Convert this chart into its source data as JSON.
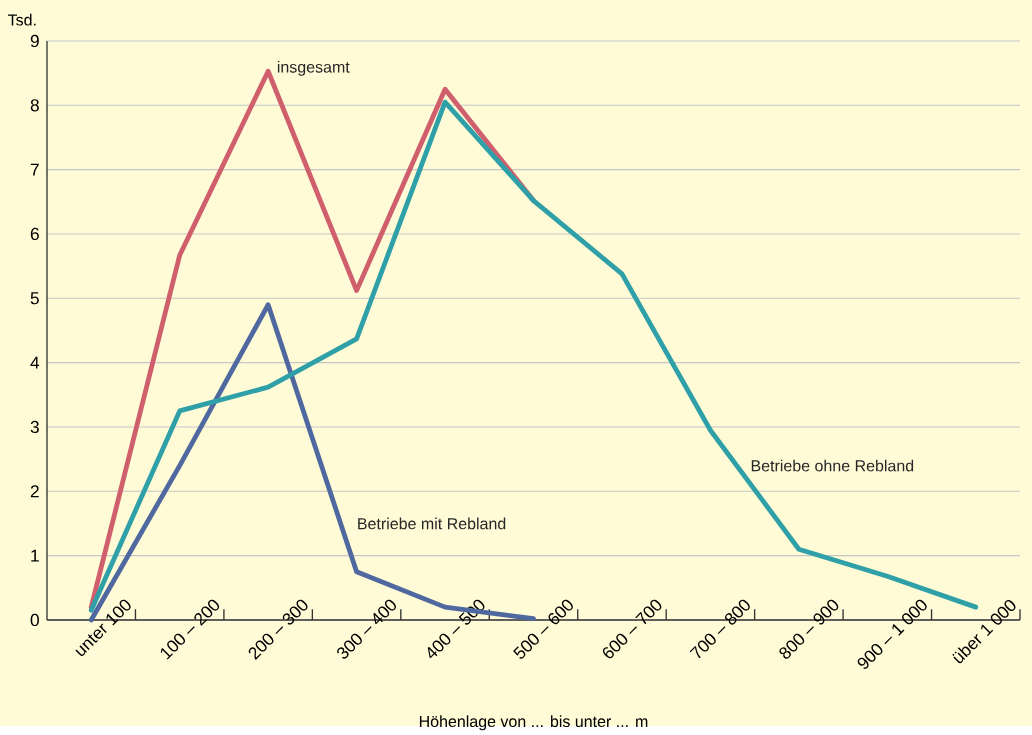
{
  "chart_data": {
    "type": "line",
    "ylabel": "Tsd.",
    "xlabel": "Höhenlage von ... bis unter ... m",
    "categories": [
      "unter 100",
      "100 – 200",
      "200 – 300",
      "300 – 400",
      "400 – 500",
      "500 – 600",
      "600 – 700",
      "700 – 800",
      "800 – 900",
      "900 – 1 000",
      "über 1 000"
    ],
    "series": [
      {
        "name": "insgesamt",
        "color": "#cf5f6c",
        "values": [
          0.2,
          5.67,
          8.53,
          5.12,
          8.25,
          6.52,
          null,
          null,
          null,
          null,
          null
        ]
      },
      {
        "name": "Betriebe mit Rebland",
        "color": "#4f68a0",
        "values": [
          0.0,
          2.4,
          4.9,
          0.75,
          0.2,
          0.02,
          null,
          null,
          null,
          null,
          null
        ]
      },
      {
        "name": "Betriebe ohne Rebland",
        "color": "#2fa0a8",
        "values": [
          0.15,
          3.25,
          3.62,
          4.37,
          8.05,
          6.52,
          5.38,
          2.95,
          1.1,
          0.68,
          0.2
        ]
      }
    ],
    "ylim": [
      0,
      9
    ],
    "yticks": [
      0,
      1,
      2,
      3,
      4,
      5,
      6,
      7,
      8,
      9
    ],
    "grid": "y",
    "marker": "none",
    "line_style": "solid"
  }
}
